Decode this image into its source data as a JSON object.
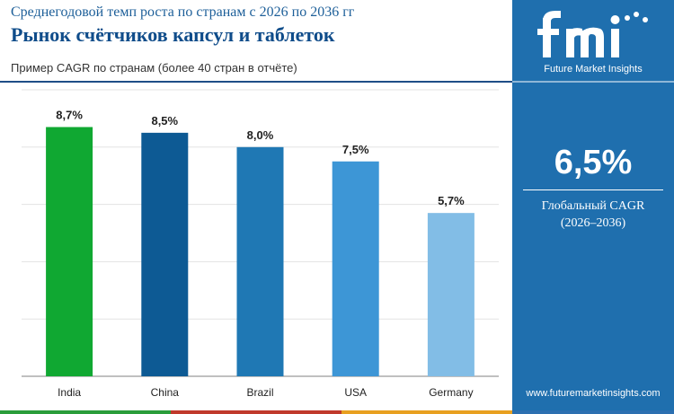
{
  "header": {
    "subtitle": "Среднегодовой темп роста по странам с 2026 по 2036 гг",
    "title": "Рынок счётчиков капсул и таблеток",
    "note": "Пример CAGR по странам (более 40 стран в отчёте)"
  },
  "sidebar": {
    "logo_letters": "fmi",
    "logo_text": "Future Market Insights",
    "kpi_value": "6,5%",
    "kpi_label_1": "Глобальный CAGR",
    "kpi_label_2": "(2026–2036)",
    "website": "www.futuremarketinsights.com"
  },
  "colors": {
    "sidebar_bg": "#1f6fae",
    "title": "#0f4c8a",
    "stripes": [
      "#2a9d3a",
      "#c0392b",
      "#e8a020",
      "#2c6fb0"
    ]
  },
  "chart_data": {
    "type": "bar",
    "categories": [
      "India",
      "China",
      "Brazil",
      "USA",
      "Germany"
    ],
    "values": [
      8.7,
      8.5,
      8.0,
      7.5,
      5.7
    ],
    "labels": [
      "8,7%",
      "8,5%",
      "8,0%",
      "7,5%",
      "5,7%"
    ],
    "colors": [
      "#10a832",
      "#0d5a94",
      "#1f78b4",
      "#3d96d6",
      "#82bde6"
    ],
    "ylim": [
      0,
      10
    ],
    "grid": true,
    "title": "",
    "xlabel": "",
    "ylabel": ""
  }
}
